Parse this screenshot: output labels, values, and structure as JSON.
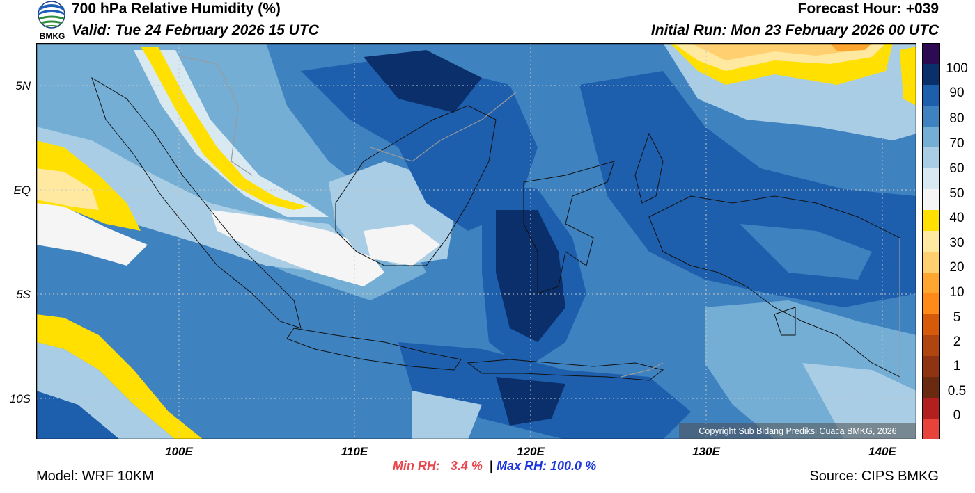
{
  "header": {
    "title": "700 hPa Relative Humidity (%)",
    "valid": "Valid: Tue 24 February 2026 15 UTC",
    "forecast_hour": "Forecast Hour: +039",
    "initial_run": "Initial Run: Mon 23 February 2026 00 UTC",
    "logo_text": "BMKG"
  },
  "map": {
    "lat_labels": [
      "5N",
      "EQ",
      "5S",
      "10S"
    ],
    "lon_labels": [
      "100E",
      "110E",
      "120E",
      "130E",
      "140E"
    ],
    "copyright": "Copyright Sub Bidang Prediksi Cuaca BMKG, 2026"
  },
  "colorbar": {
    "labels": [
      "100",
      "90",
      "80",
      "70",
      "60",
      "50",
      "40",
      "30",
      "20",
      "10",
      "5",
      "2",
      "1",
      "0.5",
      "0"
    ],
    "colors": [
      "#2d0a52",
      "#0b2f6b",
      "#1e5fad",
      "#3f82c0",
      "#74aed5",
      "#a9cde5",
      "#d9e9f2",
      "#f5f5f5",
      "#ffe000",
      "#ffe8a0",
      "#ffcf70",
      "#ffa630",
      "#ff8a1a",
      "#d65a0a",
      "#b04510",
      "#8e3412",
      "#6a2a12",
      "#b31e1e",
      "#e8433a"
    ]
  },
  "stats": {
    "min_rh": "Min RH:   3.4 %",
    "separator": "|",
    "max_rh": "Max RH: 100.0 %"
  },
  "footer": {
    "model": "Model: WRF 10KM",
    "source": "Source: CIPS BMKG"
  }
}
